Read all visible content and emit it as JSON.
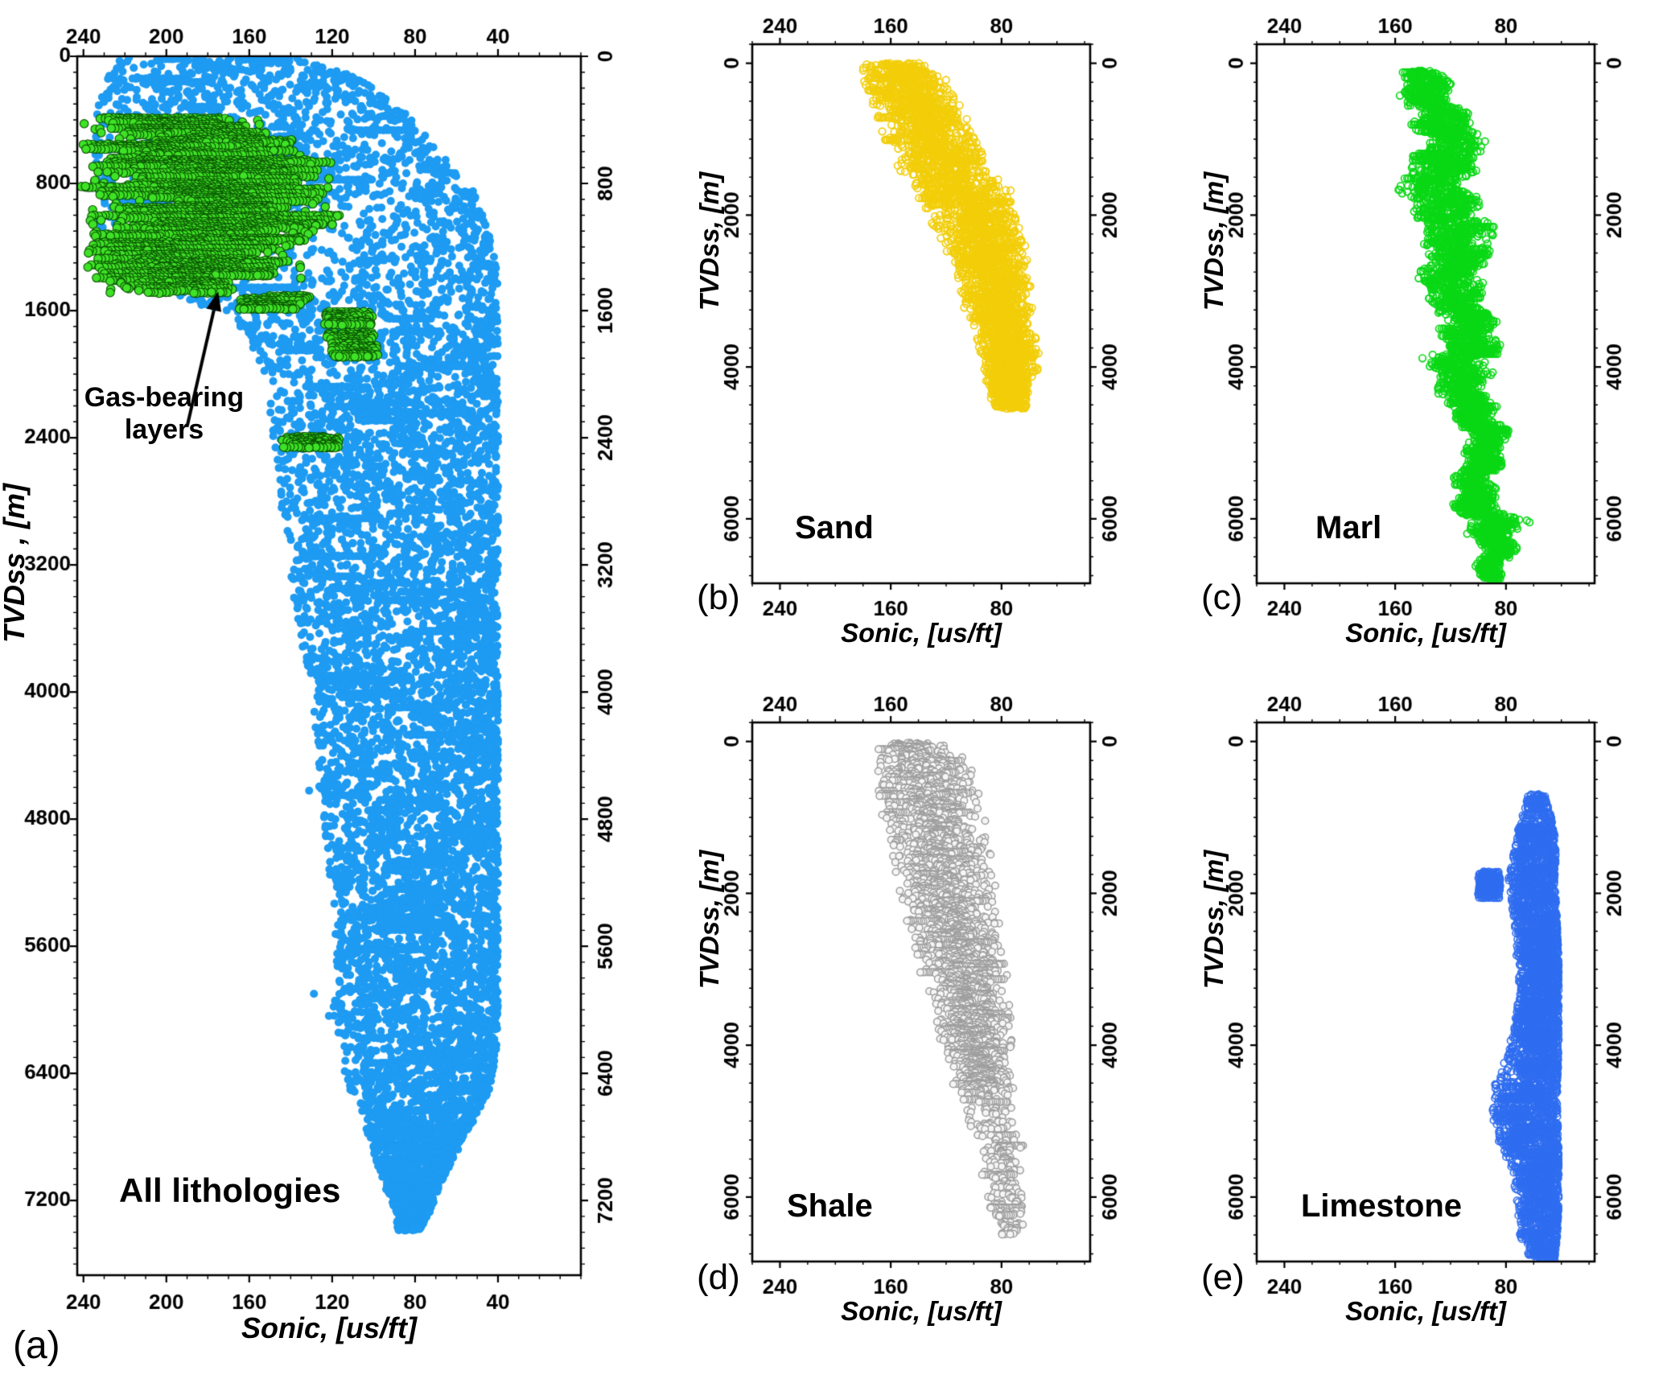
{
  "chart_data": {
    "type": "scatter",
    "description": "Sonic transit time vs true vertical depth subsea, by lithology",
    "panels": [
      {
        "id": "a",
        "tag": "(a)",
        "corner_label": "All lithologies",
        "xlabel": "Sonic, [us/ft]",
        "ylabel": "TVDss , [m]",
        "xlim": [
          243,
          0
        ],
        "ylim": [
          0,
          7670
        ],
        "x_ticks": [
          240,
          200,
          160,
          120,
          80,
          40
        ],
        "y_ticks": [
          0,
          800,
          1600,
          2400,
          3200,
          4000,
          4800,
          5600,
          6400,
          7200
        ],
        "x_minor": 10,
        "y_minor": 100,
        "annotation": {
          "line1": "Gas-bearing",
          "line2": "layers",
          "arrow_tail": [
            190,
            2330
          ],
          "arrow_tip": [
            175,
            1480
          ]
        },
        "series": [
          {
            "name": "All lithologies",
            "color": "#1e9bf2",
            "marker": "filled",
            "size": 5,
            "seed": 101,
            "step": 3.5,
            "per_step": 4,
            "bias": "lo",
            "bias_k": 1.25,
            "streak_p": 0.05,
            "streak_len": 30,
            "spikes": {
              "p": 0.025,
              "len": 15,
              "d0": 4300,
              "d1": 6500
            },
            "envelope": [
              [
                10,
                135,
                222
              ],
              [
                150,
                105,
                232
              ],
              [
                350,
                85,
                235
              ],
              [
                600,
                68,
                235
              ],
              [
                850,
                52,
                235
              ],
              [
                1100,
                44,
                232
              ],
              [
                1400,
                40,
                225
              ],
              [
                1550,
                41,
                185
              ],
              [
                1700,
                40,
                165
              ],
              [
                2000,
                40,
                152
              ],
              [
                2400,
                40,
                149
              ],
              [
                2800,
                40,
                145
              ],
              [
                3200,
                40,
                141
              ],
              [
                3600,
                40,
                136
              ],
              [
                4000,
                40,
                130
              ],
              [
                4400,
                40,
                127
              ],
              [
                4800,
                40,
                124
              ],
              [
                5200,
                40,
                121
              ],
              [
                5600,
                40,
                118
              ],
              [
                6000,
                40,
                119
              ],
              [
                6300,
                41,
                115
              ],
              [
                6500,
                44,
                112
              ],
              [
                6700,
                52,
                105
              ],
              [
                6900,
                60,
                100
              ],
              [
                7100,
                68,
                95
              ],
              [
                7250,
                72,
                90
              ],
              [
                7390,
                78,
                88
              ]
            ]
          },
          {
            "name": "Gas-bearing layers",
            "color": "#3fe226",
            "edge": "#084f00",
            "marker": "filled",
            "size": 5.2,
            "seed": 55,
            "row_gap": 13,
            "bands": [
              [
                390,
                530,
                150,
                242
              ],
              [
                530,
                630,
                135,
                240
              ],
              [
                640,
                980,
                120,
                242
              ],
              [
                990,
                1200,
                115,
                238
              ],
              [
                1210,
                1400,
                135,
                240
              ],
              [
                1410,
                1500,
                168,
                228
              ],
              [
                1510,
                1600,
                130,
                168
              ],
              [
                1610,
                1700,
                100,
                124
              ],
              [
                1740,
                1810,
                100,
                122
              ],
              [
                1825,
                1890,
                98,
                120
              ],
              [
                2395,
                2470,
                116,
                144
              ]
            ]
          }
        ]
      },
      {
        "id": "b",
        "tag": "(b)",
        "corner_label": "Sand",
        "xlabel": "Sonic, [us/ft]",
        "ylabel": "TVDss, [m]",
        "xlim": [
          260,
          16
        ],
        "ylim": [
          -250,
          6850
        ],
        "x_ticks": [
          240,
          160,
          80
        ],
        "y_ticks": [
          0,
          2000,
          4000,
          6000
        ],
        "x_minor": 20,
        "y_minor": 250,
        "series": [
          {
            "name": "Sand",
            "color": "#f2ce0a",
            "marker": "open",
            "size": 4.3,
            "lw": 1.7,
            "seed": 202,
            "step": 3,
            "per_step": 2,
            "bias": "center",
            "streak_p": 0.06,
            "envelope": [
              [
                0,
                130,
                182
              ],
              [
                200,
                120,
                180
              ],
              [
                400,
                112,
                178
              ],
              [
                700,
                105,
                172
              ],
              [
                1000,
                95,
                165
              ],
              [
                1300,
                85,
                158
              ],
              [
                1600,
                75,
                150
              ],
              [
                2000,
                65,
                135
              ],
              [
                2400,
                60,
                125
              ],
              [
                2800,
                57,
                115
              ],
              [
                3200,
                55,
                108
              ],
              [
                3600,
                53,
                100
              ],
              [
                4000,
                52,
                95
              ],
              [
                4300,
                58,
                90
              ],
              [
                4550,
                62,
                85
              ]
            ]
          }
        ]
      },
      {
        "id": "c",
        "tag": "(c)",
        "corner_label": "Marl",
        "xlabel": "Sonic, [us/ft]",
        "ylabel": "TVDss, [m]",
        "xlim": [
          260,
          16
        ],
        "ylim": [
          -250,
          6850
        ],
        "x_ticks": [
          240,
          160,
          80
        ],
        "y_ticks": [
          0,
          2000,
          4000,
          6000
        ],
        "x_minor": 20,
        "y_minor": 250,
        "series": [
          {
            "name": "Marl",
            "color": "#0ad816",
            "marker": "open",
            "size": 4.3,
            "lw": 1.7,
            "seed": 303,
            "step": 4,
            "per_step": 2,
            "bias": "center",
            "streak_p": 0.07,
            "wiggle": [
              6,
              210,
              4,
              61
            ],
            "envelope": [
              [
                100,
                118,
                150
              ],
              [
                400,
                112,
                152
              ],
              [
                800,
                105,
                150
              ],
              [
                1200,
                100,
                148
              ],
              [
                1600,
                96,
                152
              ],
              [
                2000,
                95,
                150
              ],
              [
                2400,
                95,
                145
              ],
              [
                2800,
                92,
                138
              ],
              [
                3200,
                90,
                132
              ],
              [
                3600,
                90,
                130
              ],
              [
                3900,
                88,
                142
              ],
              [
                4200,
                88,
                125
              ],
              [
                4600,
                86,
                120
              ],
              [
                5000,
                85,
                115
              ],
              [
                5400,
                84,
                112
              ],
              [
                5800,
                82,
                112
              ],
              [
                6050,
                68,
                118
              ],
              [
                6300,
                78,
                108
              ],
              [
                6600,
                79,
                100
              ],
              [
                6800,
                82,
                95
              ]
            ]
          }
        ]
      },
      {
        "id": "d",
        "tag": "(d)",
        "corner_label": "Shale",
        "xlabel": "Sonic, [us/ft]",
        "ylabel": "TVDss, [m]",
        "xlim": [
          260,
          16
        ],
        "ylim": [
          -250,
          6850
        ],
        "x_ticks": [
          240,
          160,
          80
        ],
        "y_ticks": [
          0,
          2000,
          4000,
          6000
        ],
        "x_minor": 20,
        "y_minor": 250,
        "series": [
          {
            "name": "Shale",
            "color": "#9e9e9e",
            "fill": "#f6f6f6",
            "marker": "open",
            "size": 4.3,
            "lw": 1.5,
            "seed": 404,
            "step": 4,
            "per_step": 2,
            "bias": "center",
            "streak_p": 0.06,
            "fade": [
              4600,
              0.3
            ],
            "envelope": [
              [
                20,
                120,
                170
              ],
              [
                300,
                100,
                172
              ],
              [
                600,
                95,
                170
              ],
              [
                900,
                90,
                168
              ],
              [
                1200,
                88,
                165
              ],
              [
                1500,
                85,
                162
              ],
              [
                1800,
                82,
                158
              ],
              [
                2100,
                80,
                154
              ],
              [
                2400,
                78,
                150
              ],
              [
                2700,
                76,
                145
              ],
              [
                3000,
                75,
                140
              ],
              [
                3300,
                74,
                135
              ],
              [
                3600,
                73,
                130
              ],
              [
                3900,
                72,
                126
              ],
              [
                4200,
                72,
                120
              ],
              [
                4500,
                70,
                115
              ],
              [
                4800,
                68,
                110
              ],
              [
                5100,
                65,
                105
              ],
              [
                5400,
                62,
                100
              ],
              [
                5700,
                64,
                95
              ],
              [
                6000,
                62,
                92
              ],
              [
                6300,
                60,
                88
              ],
              [
                6500,
                62,
                85
              ]
            ]
          }
        ]
      },
      {
        "id": "e",
        "tag": "(e)",
        "corner_label": "Limestone",
        "xlabel": "Sonic, [us/ft]",
        "ylabel": "TVDss, [m]",
        "xlim": [
          260,
          16
        ],
        "ylim": [
          -250,
          6850
        ],
        "x_ticks": [
          240,
          160,
          80
        ],
        "y_ticks": [
          0,
          2000,
          4000,
          6000
        ],
        "x_minor": 20,
        "y_minor": 250,
        "series": [
          {
            "name": "Limestone",
            "color": "#2f6df0",
            "marker": "open",
            "size": 4.3,
            "lw": 1.6,
            "seed": 505,
            "step": 4,
            "per_step": 2,
            "bias": "lo",
            "bias_k": 1.5,
            "streak_p": 0.12,
            "sparse_before": [
              1150,
              0.45
            ],
            "row_gap": 26,
            "bands": [
              [
                1720,
                2060,
                84,
                100
              ]
            ],
            "envelope": [
              [
                700,
                52,
                64
              ],
              [
                950,
                48,
                68
              ],
              [
                1200,
                45,
                72
              ],
              [
                1500,
                44,
                75
              ],
              [
                1800,
                45,
                78
              ],
              [
                2100,
                44,
                76
              ],
              [
                2500,
                43,
                74
              ],
              [
                2900,
                42,
                72
              ],
              [
                3300,
                42,
                70
              ],
              [
                3700,
                42,
                75
              ],
              [
                4100,
                42,
                78
              ],
              [
                4500,
                43,
                88
              ],
              [
                4900,
                43,
                90
              ],
              [
                5300,
                42,
                85
              ],
              [
                5700,
                42,
                75
              ],
              [
                6100,
                42,
                72
              ],
              [
                6500,
                43,
                70
              ],
              [
                6820,
                45,
                62
              ]
            ]
          }
        ]
      }
    ]
  }
}
